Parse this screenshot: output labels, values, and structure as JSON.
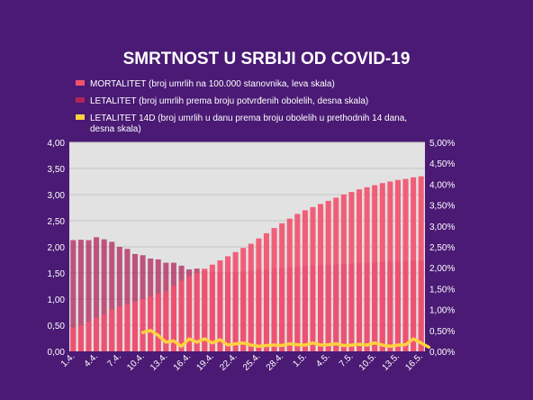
{
  "colors": {
    "background": "#4a1a74",
    "plot_area": "#e2e2e2",
    "gridline": "#c4c4c4",
    "mortalitet": "#f2526f",
    "letalitet": "#b0245a",
    "letalitet14d": "#ffd23f",
    "text": "#ffffff"
  },
  "chart_data": {
    "type": "bar",
    "title": "SMRTNOST U SRBIJI OD COVID-19",
    "legend_position": "top-left",
    "grid": true,
    "xlabel": "",
    "ylabel": "",
    "y_left": {
      "lim": [
        0,
        4
      ],
      "ticks": [
        "0,00",
        "0,50",
        "1,00",
        "1,50",
        "2,00",
        "2,50",
        "3,00",
        "3,50",
        "4,00"
      ]
    },
    "y_right": {
      "lim": [
        0,
        5
      ],
      "unit": "%",
      "ticks": [
        "0,00%",
        "0,50%",
        "1,00%",
        "1,50%",
        "2,00%",
        "2,50%",
        "3,00%",
        "3,50%",
        "4,00%",
        "4,50%",
        "5,00%"
      ]
    },
    "x_tick_labels": [
      "1.4.",
      "4.4.",
      "7.4.",
      "10.4.",
      "13.4.",
      "16.4.",
      "19.4.",
      "22.4.",
      "25.4.",
      "28.4.",
      "1.5.",
      "4.5.",
      "7.5.",
      "10.5.",
      "13.5.",
      "16.5."
    ],
    "series": [
      {
        "name": "MORTALITET (broj umrlih na 100.000 stanovnika, leva skala)",
        "axis": "left",
        "kind": "bar",
        "values": [
          0.45,
          0.5,
          0.57,
          0.64,
          0.7,
          0.8,
          0.86,
          0.9,
          0.95,
          1.0,
          1.05,
          1.1,
          1.15,
          1.25,
          1.35,
          1.43,
          1.5,
          1.58,
          1.66,
          1.74,
          1.82,
          1.9,
          1.98,
          2.06,
          2.16,
          2.26,
          2.36,
          2.45,
          2.54,
          2.63,
          2.7,
          2.76,
          2.82,
          2.88,
          2.94,
          3.0,
          3.05,
          3.1,
          3.14,
          3.18,
          3.22,
          3.25,
          3.28,
          3.3,
          3.33,
          3.35
        ]
      },
      {
        "name": "LETALITET (broj umrlih prema broju potvrđenih obolelih, desna skala)",
        "axis": "right",
        "kind": "bar",
        "values": [
          2.66,
          2.67,
          2.66,
          2.73,
          2.68,
          2.62,
          2.5,
          2.45,
          2.33,
          2.3,
          2.22,
          2.2,
          2.12,
          2.12,
          2.05,
          1.96,
          1.98,
          1.92,
          1.9,
          1.9,
          1.9,
          1.9,
          1.91,
          1.93,
          1.95,
          1.96,
          1.98,
          2.0,
          2.01,
          2.03,
          2.04,
          2.05,
          2.06,
          2.07,
          2.08,
          2.09,
          2.1,
          2.11,
          2.12,
          2.13,
          2.14,
          2.15,
          2.15,
          2.16,
          2.17,
          2.17
        ]
      },
      {
        "name": "LETALITET 14D (broj umrlih u danu prema broju obolelih u prethodnih 14 dana, desna skala)",
        "axis": "right",
        "kind": "line",
        "start_index": 9,
        "values": [
          0.45,
          0.5,
          0.38,
          0.22,
          0.25,
          0.12,
          0.3,
          0.22,
          0.3,
          0.2,
          0.28,
          0.15,
          0.18,
          0.2,
          0.15,
          0.12,
          0.14,
          0.15,
          0.14,
          0.18,
          0.16,
          0.15,
          0.2,
          0.15,
          0.16,
          0.18,
          0.14,
          0.15,
          0.17,
          0.15,
          0.2,
          0.15,
          0.12,
          0.15,
          0.16,
          0.3,
          0.2,
          0.1
        ]
      }
    ]
  }
}
